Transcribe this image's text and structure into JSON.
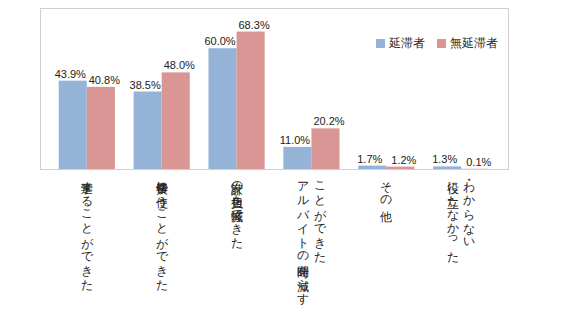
{
  "chart_data": {
    "type": "bar",
    "categories": [
      "進学することができた",
      "修学費に使うことができた",
      "家計の負担を軽減できた",
      "アルバイトの時間を減らす\nことができた",
      "その他",
      "役に立たなかった\n・わからない"
    ],
    "series": [
      {
        "name": "延滞者",
        "color": "#95b3d7",
        "values": [
          43.9,
          38.5,
          60.0,
          11.0,
          1.7,
          1.3
        ],
        "value_labels": [
          "43.9%",
          "38.5%",
          "60.0%",
          "11.0%",
          "1.7%",
          "1.3%"
        ]
      },
      {
        "name": "無延滞者",
        "color": "#d99694",
        "values": [
          40.8,
          48.0,
          68.3,
          20.2,
          1.2,
          0.1
        ],
        "value_labels": [
          "40.8%",
          "48.0%",
          "68.3%",
          "20.2%",
          "1.2%",
          "0.1%"
        ]
      }
    ],
    "ylim": [
      0,
      80
    ],
    "grid": false,
    "data_labels": true,
    "tick_labels": "x",
    "legend": "top-right"
  }
}
